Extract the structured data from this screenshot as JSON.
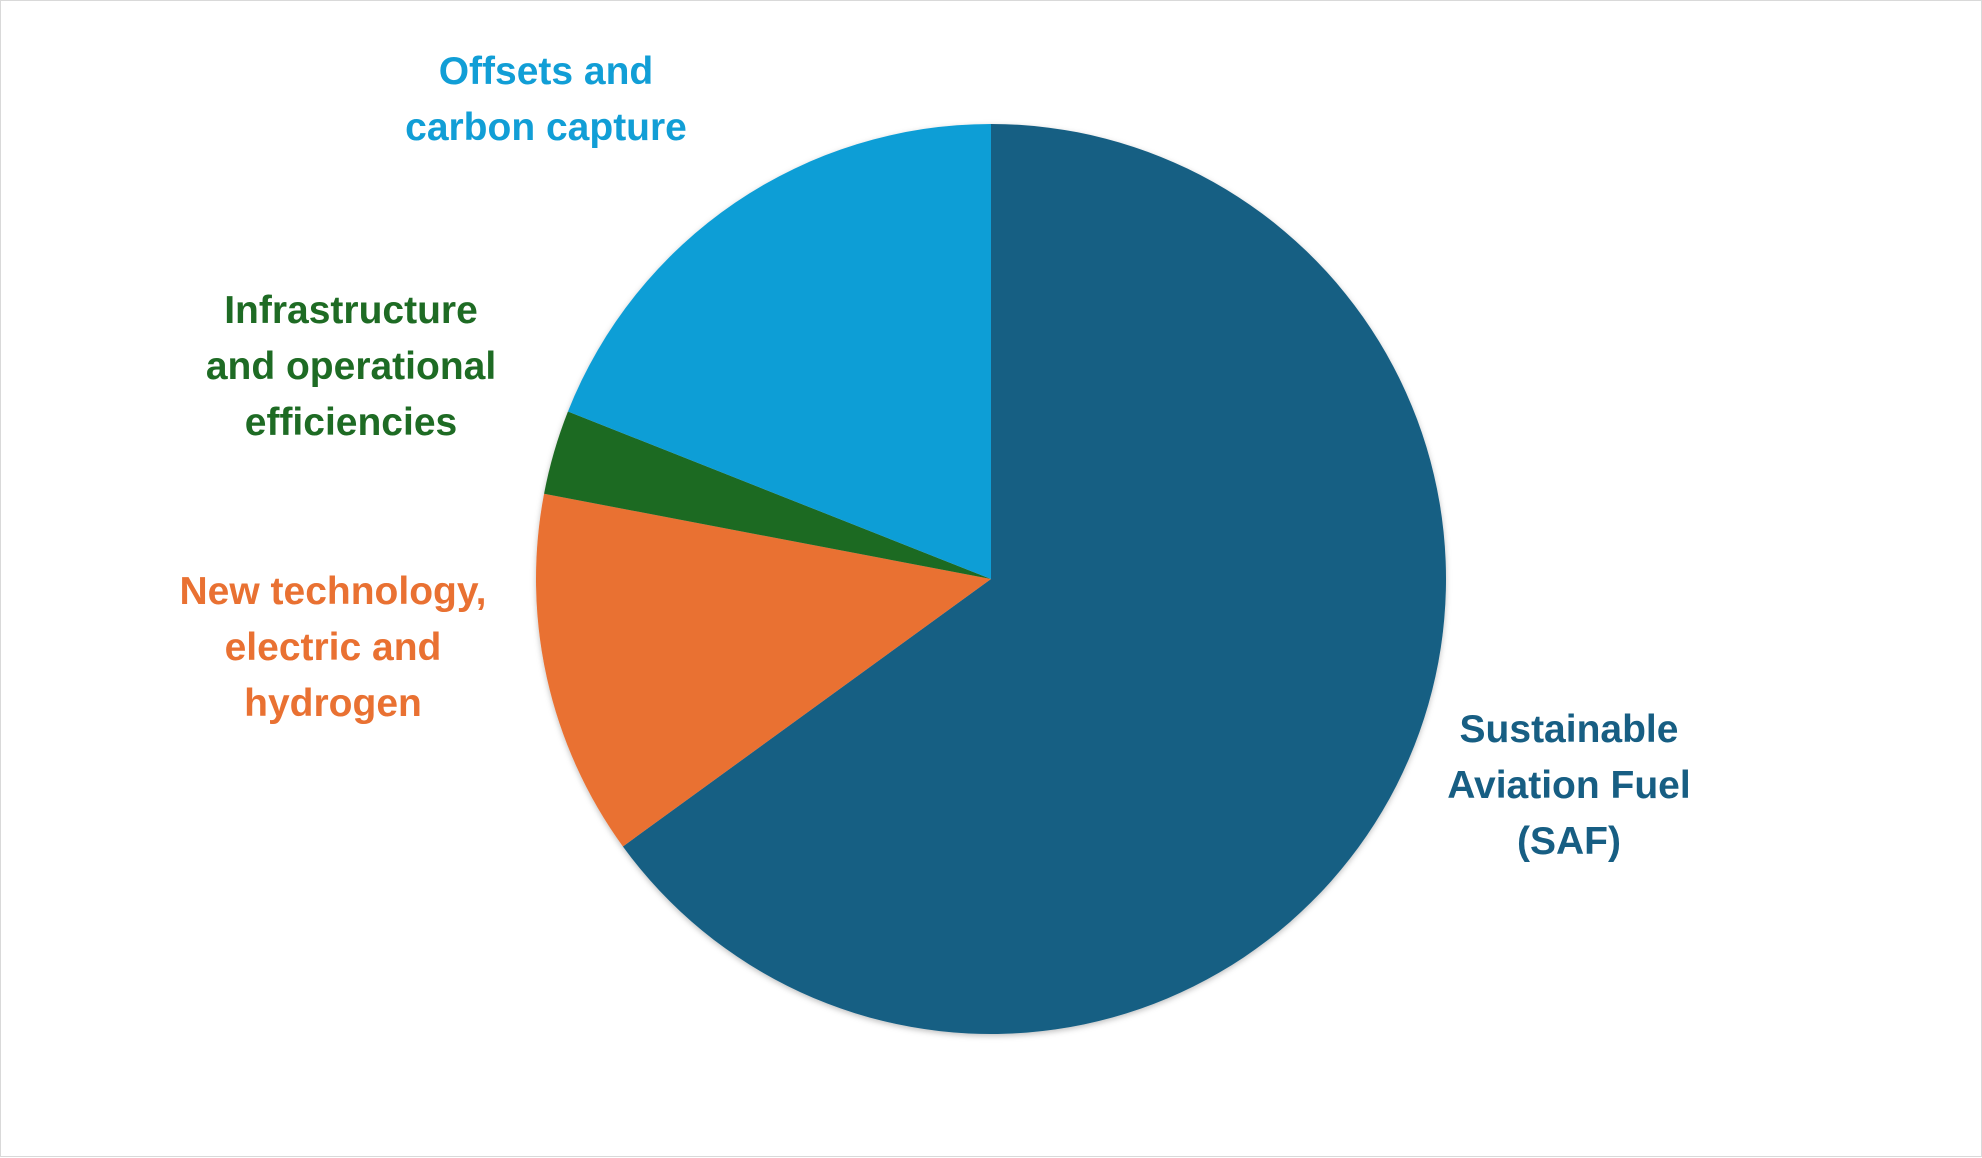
{
  "chart_data": {
    "type": "pie",
    "title": "",
    "start_angle_deg": 0,
    "direction": "clockwise",
    "slices": [
      {
        "label_lines": [
          "Sustainable",
          "Aviation Fuel",
          "(SAF)"
        ],
        "value": 65,
        "color": "#175e83"
      },
      {
        "label_lines": [
          "New technology,",
          "electric and",
          "hydrogen"
        ],
        "value": 13,
        "color": "#e97132"
      },
      {
        "label_lines": [
          "Infrastructure",
          "and operational",
          "efficiencies"
        ],
        "value": 3,
        "color": "#1e6b24"
      },
      {
        "label_lines": [
          "Offsets and",
          "carbon capture"
        ],
        "value": 19,
        "color": "#119ed6"
      }
    ]
  }
}
